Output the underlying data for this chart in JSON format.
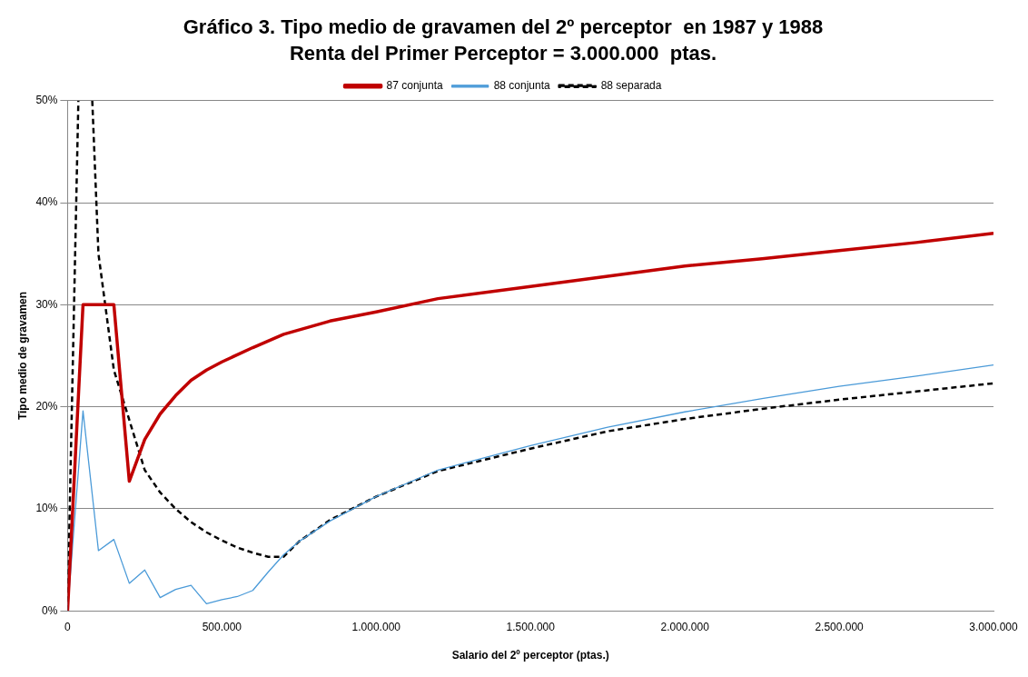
{
  "chart_data": {
    "type": "line",
    "title": "Gráfico 3. Tipo medio de gravamen del 2º perceptor  en 1987 y 1988",
    "subtitle": "Renta del Primer Perceptor = 3.000.000  ptas.",
    "xlabel": "Salario del 2º perceptor (ptas.)",
    "ylabel": "Tipo medio de gravamen",
    "xlim": [
      0,
      3000000
    ],
    "xticks": [
      {
        "value": 0,
        "label": "0"
      },
      {
        "value": 500000,
        "label": "500.000"
      },
      {
        "value": 1000000,
        "label": "1.000.000"
      },
      {
        "value": 1500000,
        "label": "1.500.000"
      },
      {
        "value": 2000000,
        "label": "2.000.000"
      },
      {
        "value": 2500000,
        "label": "2.500.000"
      },
      {
        "value": 3000000,
        "label": "3.000.000"
      }
    ],
    "ylim": [
      0,
      50
    ],
    "yticks": [
      {
        "value": 0,
        "label": "0%"
      },
      {
        "value": 10,
        "label": "10%"
      },
      {
        "value": 20,
        "label": "20%"
      },
      {
        "value": 30,
        "label": "30%"
      },
      {
        "value": 40,
        "label": "40%"
      },
      {
        "value": 50,
        "label": "50%"
      }
    ],
    "grid": "y",
    "legend": "top",
    "marker": "none",
    "series": [
      {
        "name": "87 conjunta",
        "color": "#c00000",
        "line_style": "solid",
        "x": [
          0,
          50000,
          100000,
          150000,
          200000,
          250000,
          300000,
          350000,
          400000,
          450000,
          500000,
          600000,
          700000,
          850000,
          1000000,
          1200000,
          1500000,
          1750000,
          2000000,
          2250000,
          2500000,
          2750000,
          3000000
        ],
        "values": [
          0,
          30,
          30,
          30,
          12.7,
          16.8,
          19.3,
          21.1,
          22.6,
          23.6,
          24.4,
          25.8,
          27.1,
          28.4,
          29.3,
          30.6,
          31.8,
          32.8,
          33.8,
          34.5,
          35.3,
          36.1,
          37.0
        ]
      },
      {
        "name": "88 conjunta",
        "color": "#4a9ad8",
        "line_style": "solid",
        "x": [
          0,
          50000,
          100000,
          150000,
          200000,
          250000,
          300000,
          350000,
          400000,
          450000,
          500000,
          550000,
          600000,
          650000,
          700000,
          750000,
          850000,
          1000000,
          1200000,
          1500000,
          1750000,
          2000000,
          2250000,
          2500000,
          2750000,
          3000000
        ],
        "values": [
          0,
          19.6,
          5.9,
          7.0,
          2.7,
          4.0,
          1.3,
          2.1,
          2.5,
          0.7,
          1.1,
          1.4,
          2.0,
          3.8,
          5.5,
          6.8,
          8.8,
          11.2,
          13.8,
          16.2,
          18.0,
          19.5,
          20.8,
          22.0,
          23.0,
          24.1
        ]
      },
      {
        "name": "88 separada",
        "color": "#000000",
        "line_style": "dashed",
        "x": [
          0,
          35000,
          50000,
          80000,
          100000,
          150000,
          200000,
          250000,
          300000,
          350000,
          400000,
          450000,
          500000,
          550000,
          600000,
          650000,
          700000,
          750000,
          850000,
          1000000,
          1200000,
          1500000,
          1750000,
          2000000,
          2250000,
          2500000,
          2750000,
          3000000
        ],
        "values": [
          0,
          50,
          null,
          50,
          35.0,
          23.6,
          18.7,
          13.8,
          11.6,
          10.0,
          8.7,
          7.7,
          6.9,
          6.2,
          5.7,
          5.3,
          5.3,
          6.8,
          8.9,
          11.2,
          13.7,
          15.9,
          17.6,
          18.8,
          19.8,
          20.7,
          21.5,
          22.3
        ]
      }
    ]
  }
}
